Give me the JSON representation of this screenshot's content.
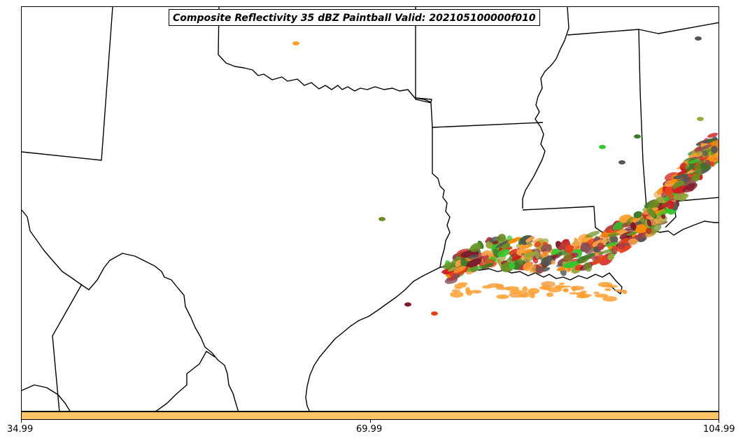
{
  "title": "Composite Reflectivity 35 dBZ Paintball Valid: 202105100000f010",
  "colors": {
    "colorbar": "#ffc266",
    "paintball": [
      "#ff9f30",
      "#ff8c00",
      "#e8421c",
      "#d11f1f",
      "#b3383e",
      "#7a1c2c",
      "#3d7a2a",
      "#6b8e23",
      "#9aa63a",
      "#35c52e",
      "#8b4a55",
      "#555555",
      "#f2a24a"
    ]
  },
  "colorbar": {
    "ticks": [
      "34.99",
      "69.99",
      "104.99"
    ]
  }
}
